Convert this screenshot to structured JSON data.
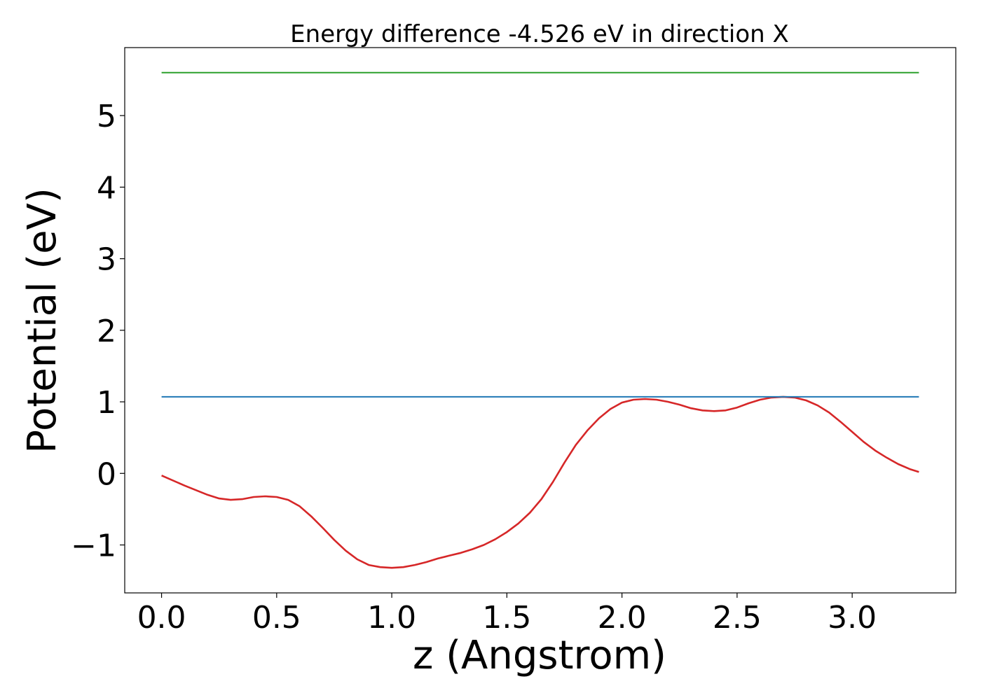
{
  "chart_data": {
    "type": "line",
    "title": "Energy difference -4.526 eV in direction X",
    "xlabel": "z (Angstrom)",
    "ylabel": "Potential (eV)",
    "xlim": [
      -0.16,
      3.45
    ],
    "ylim": [
      -1.67,
      5.95
    ],
    "x_ticks": [
      0.0,
      0.5,
      1.0,
      1.5,
      2.0,
      2.5,
      3.0
    ],
    "x_tick_labels": [
      "0.0",
      "0.5",
      "1.0",
      "1.5",
      "2.0",
      "2.5",
      "3.0"
    ],
    "y_ticks": [
      -1,
      0,
      1,
      2,
      3,
      4,
      5
    ],
    "y_tick_labels": [
      "−1",
      "0",
      "1",
      "2",
      "3",
      "4",
      "5"
    ],
    "grid": false,
    "series": [
      {
        "name": "potential",
        "color": "#d62728",
        "x": [
          0.0,
          0.1,
          0.2,
          0.25,
          0.3,
          0.35,
          0.4,
          0.45,
          0.5,
          0.55,
          0.6,
          0.65,
          0.7,
          0.75,
          0.8,
          0.85,
          0.9,
          0.95,
          1.0,
          1.05,
          1.1,
          1.15,
          1.2,
          1.25,
          1.3,
          1.35,
          1.4,
          1.45,
          1.5,
          1.55,
          1.6,
          1.65,
          1.7,
          1.75,
          1.8,
          1.85,
          1.9,
          1.95,
          2.0,
          2.05,
          2.1,
          2.15,
          2.2,
          2.25,
          2.3,
          2.35,
          2.4,
          2.45,
          2.5,
          2.55,
          2.6,
          2.65,
          2.7,
          2.75,
          2.8,
          2.85,
          2.9,
          2.95,
          3.0,
          3.05,
          3.1,
          3.15,
          3.2,
          3.25,
          3.29
        ],
        "y": [
          -0.03,
          -0.17,
          -0.3,
          -0.35,
          -0.37,
          -0.36,
          -0.33,
          -0.32,
          -0.33,
          -0.37,
          -0.46,
          -0.6,
          -0.76,
          -0.93,
          -1.08,
          -1.2,
          -1.28,
          -1.31,
          -1.32,
          -1.31,
          -1.28,
          -1.24,
          -1.19,
          -1.15,
          -1.11,
          -1.06,
          -1.0,
          -0.92,
          -0.82,
          -0.7,
          -0.55,
          -0.36,
          -0.12,
          0.15,
          0.4,
          0.6,
          0.77,
          0.9,
          0.99,
          1.03,
          1.04,
          1.03,
          1.0,
          0.96,
          0.91,
          0.88,
          0.87,
          0.88,
          0.92,
          0.98,
          1.03,
          1.06,
          1.07,
          1.06,
          1.02,
          0.95,
          0.85,
          0.72,
          0.58,
          0.44,
          0.32,
          0.22,
          0.13,
          0.06,
          0.02
        ]
      },
      {
        "name": "line-blue",
        "color": "#1f77b4",
        "x": [
          0.0,
          3.29
        ],
        "y": [
          1.07,
          1.07
        ]
      },
      {
        "name": "line-green",
        "color": "#2ca02c",
        "x": [
          0.0,
          3.29
        ],
        "y": [
          5.6,
          5.6
        ]
      }
    ]
  }
}
